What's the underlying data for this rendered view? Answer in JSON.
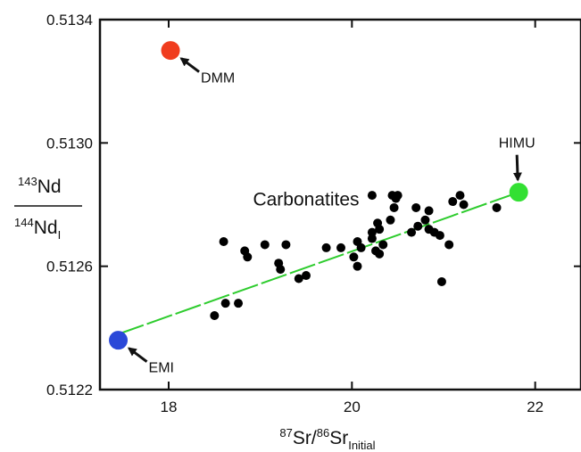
{
  "chart_data": {
    "type": "scatter",
    "title": "",
    "xlabel": {
      "pre_sup": "87",
      "a": "Sr/",
      "mid_sup": "86",
      "b": "Sr",
      "sub": "Initial"
    },
    "ylabel": {
      "num_sup": "143",
      "num": "Nd",
      "den_sup": "144",
      "den": "Nd",
      "den_sub": "I"
    },
    "xlim": [
      17.25,
      22.5
    ],
    "ylim": [
      0.5122,
      0.5134
    ],
    "xticks": [
      18,
      20,
      22
    ],
    "xtick_labels": [
      "18",
      "20",
      "22"
    ],
    "yticks": [
      0.5122,
      0.5126,
      0.513,
      0.5134
    ],
    "ytick_labels": [
      "0.5122",
      "0.5126",
      "0.5130",
      "0.5134"
    ],
    "grid": false,
    "series": [
      {
        "name": "Carbonatites",
        "color": "#000000",
        "points": [
          [
            18.5,
            0.51244
          ],
          [
            18.62,
            0.51248
          ],
          [
            18.76,
            0.51248
          ],
          [
            18.6,
            0.51268
          ],
          [
            18.83,
            0.51265
          ],
          [
            18.86,
            0.51263
          ],
          [
            19.05,
            0.51267
          ],
          [
            19.2,
            0.51261
          ],
          [
            19.22,
            0.51259
          ],
          [
            19.28,
            0.51267
          ],
          [
            19.42,
            0.51256
          ],
          [
            19.5,
            0.51257
          ],
          [
            19.72,
            0.51266
          ],
          [
            19.88,
            0.51266
          ],
          [
            20.02,
            0.51263
          ],
          [
            20.06,
            0.5126
          ],
          [
            20.06,
            0.51268
          ],
          [
            20.1,
            0.51266
          ],
          [
            20.22,
            0.51271
          ],
          [
            20.22,
            0.51269
          ],
          [
            20.26,
            0.51265
          ],
          [
            20.3,
            0.51264
          ],
          [
            20.28,
            0.51274
          ],
          [
            20.3,
            0.51272
          ],
          [
            20.34,
            0.51267
          ],
          [
            20.22,
            0.51283
          ],
          [
            20.42,
            0.51275
          ],
          [
            20.44,
            0.51283
          ],
          [
            20.46,
            0.51279
          ],
          [
            20.48,
            0.51282
          ],
          [
            20.5,
            0.51283
          ],
          [
            20.65,
            0.51271
          ],
          [
            20.7,
            0.51279
          ],
          [
            20.72,
            0.51273
          ],
          [
            20.8,
            0.51275
          ],
          [
            20.84,
            0.51272
          ],
          [
            20.84,
            0.51278
          ],
          [
            20.9,
            0.51271
          ],
          [
            20.96,
            0.5127
          ],
          [
            20.98,
            0.51255
          ],
          [
            21.06,
            0.51267
          ],
          [
            21.1,
            0.51281
          ],
          [
            21.18,
            0.51283
          ],
          [
            21.22,
            0.5128
          ],
          [
            21.58,
            0.51279
          ]
        ]
      }
    ],
    "trend_line": {
      "color": "#2ecc2e",
      "from": [
        17.45,
        0.51238
      ],
      "to": [
        21.82,
        0.51284
      ]
    },
    "endmembers": [
      {
        "label": "DMM",
        "x": 18.02,
        "y": 0.5133,
        "color": "#f03c1e",
        "arrow_from": "lower-right"
      },
      {
        "label": "HIMU",
        "x": 21.82,
        "y": 0.51284,
        "color": "#33e033",
        "arrow_from": "above"
      },
      {
        "label": "EMI",
        "x": 17.45,
        "y": 0.51236,
        "color": "#2a48d8",
        "arrow_from": "lower-right"
      }
    ],
    "annotations": [
      {
        "text": "Carbonatites",
        "x": 19.5,
        "y": 0.51282
      }
    ]
  }
}
